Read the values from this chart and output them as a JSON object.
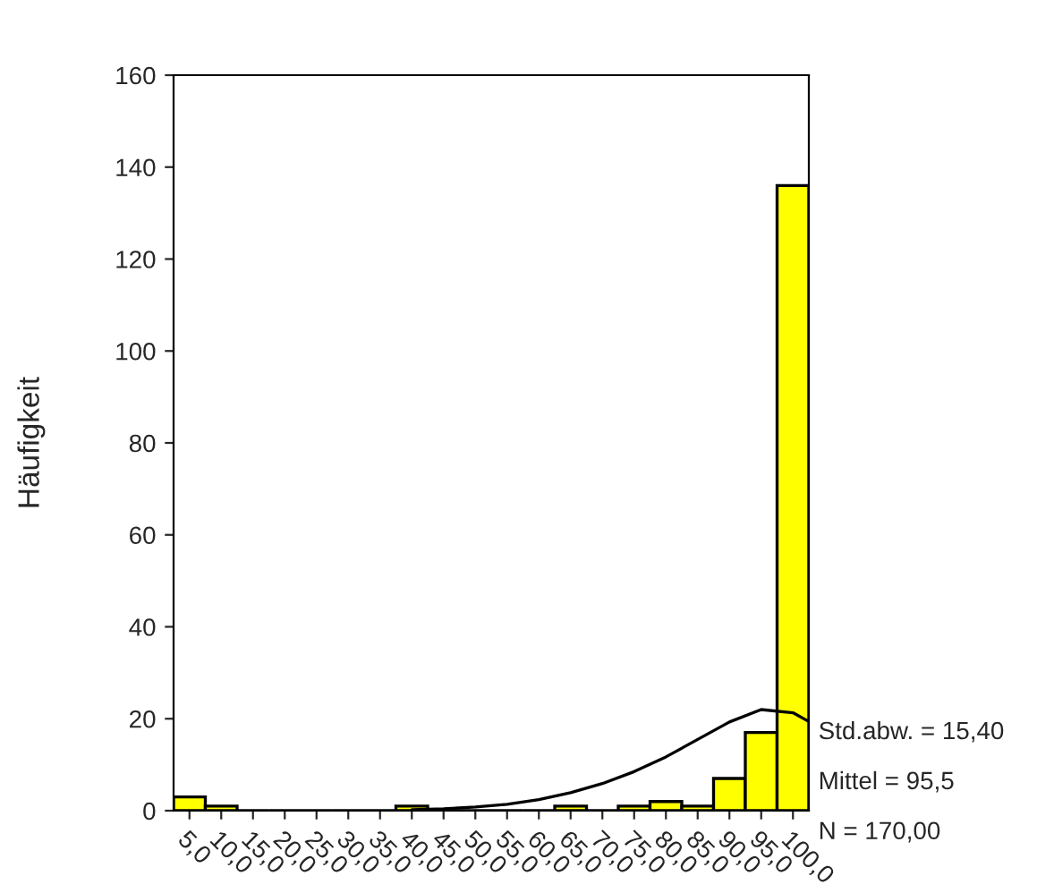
{
  "chart_data": {
    "type": "histogram",
    "ylabel": "Häufigkeit",
    "bins": [
      2.5,
      7.5,
      12.5,
      17.5,
      22.5,
      27.5,
      32.5,
      37.5,
      42.5,
      47.5,
      52.5,
      57.5,
      62.5,
      67.5,
      72.5,
      77.5,
      82.5,
      87.5,
      92.5,
      97.5,
      102.5
    ],
    "values": [
      3,
      1,
      0,
      0,
      0,
      0,
      0,
      1,
      0,
      0,
      0,
      0,
      1,
      0,
      1,
      2,
      1,
      7,
      17,
      136
    ],
    "color": "#ffff00",
    "series": [
      {
        "type": "line",
        "color": "#000000",
        "x": [
          40,
          45,
          50,
          55,
          60,
          65,
          70,
          75,
          80,
          85,
          90,
          95,
          100,
          102.5
        ],
        "values": [
          0.2,
          0.4,
          0.8,
          1.4,
          2.4,
          3.9,
          5.9,
          8.5,
          11.7,
          15.5,
          19.3,
          22.0,
          21.3,
          19.4
        ]
      }
    ],
    "xlim": [
      2.5,
      102.5
    ],
    "xticks": [
      {
        "value": 5,
        "label": "5,0"
      },
      {
        "value": 10,
        "label": "10,0"
      },
      {
        "value": 15,
        "label": "15,0"
      },
      {
        "value": 20,
        "label": "20,0"
      },
      {
        "value": 25,
        "label": "25,0"
      },
      {
        "value": 30,
        "label": "30,0"
      },
      {
        "value": 35,
        "label": "35,0"
      },
      {
        "value": 40,
        "label": "40,0"
      },
      {
        "value": 45,
        "label": "45,0"
      },
      {
        "value": 50,
        "label": "50,0"
      },
      {
        "value": 55,
        "label": "55,0"
      },
      {
        "value": 60,
        "label": "60,0"
      },
      {
        "value": 65,
        "label": "65,0"
      },
      {
        "value": 70,
        "label": "70,0"
      },
      {
        "value": 75,
        "label": "75,0"
      },
      {
        "value": 80,
        "label": "80,0"
      },
      {
        "value": 85,
        "label": "85,0"
      },
      {
        "value": 90,
        "label": "90,0"
      },
      {
        "value": 95,
        "label": "95,0"
      },
      {
        "value": 100,
        "label": "100,0"
      }
    ],
    "ylim": [
      0,
      160
    ],
    "yticks": [
      0,
      20,
      40,
      60,
      80,
      100,
      120,
      140,
      160
    ],
    "annotations": [
      "Std.abw. = 15,40",
      "Mittel = 95,5",
      "N = 170,00"
    ],
    "grid": false,
    "legend": false
  }
}
